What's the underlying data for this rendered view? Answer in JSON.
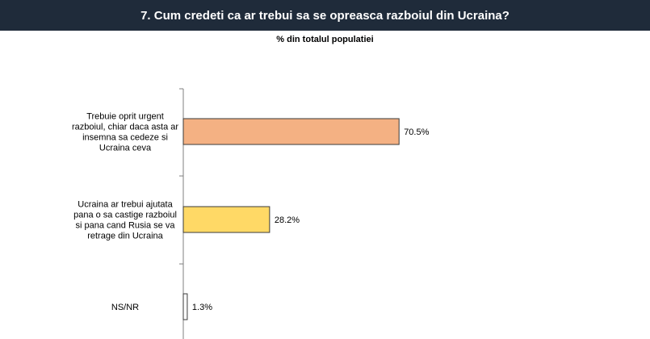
{
  "header": {
    "title": "7. Cum credeti ca ar trebui sa se opreasca razboiul din Ucraina?"
  },
  "chart_data": {
    "type": "bar",
    "orientation": "horizontal",
    "subtitle": "% din totalul populatiei",
    "categories": [
      [
        "Trebuie oprit urgent",
        "razboiul, chiar daca asta ar",
        "insemna sa cedeze si",
        "Ucraina ceva"
      ],
      [
        "Ucraina ar trebui ajutata",
        "pana o sa castige razboiul",
        "si pana cand Rusia se va",
        "retrage din Ucraina"
      ],
      [
        "NS/NR"
      ]
    ],
    "values": [
      70.5,
      28.2,
      1.3
    ],
    "value_labels": [
      "70.5%",
      "28.2%",
      "1.3%"
    ],
    "colors": [
      "#f4b183",
      "#ffd966",
      "#ffffff"
    ],
    "xlim": [
      0,
      100
    ],
    "grid": false
  }
}
